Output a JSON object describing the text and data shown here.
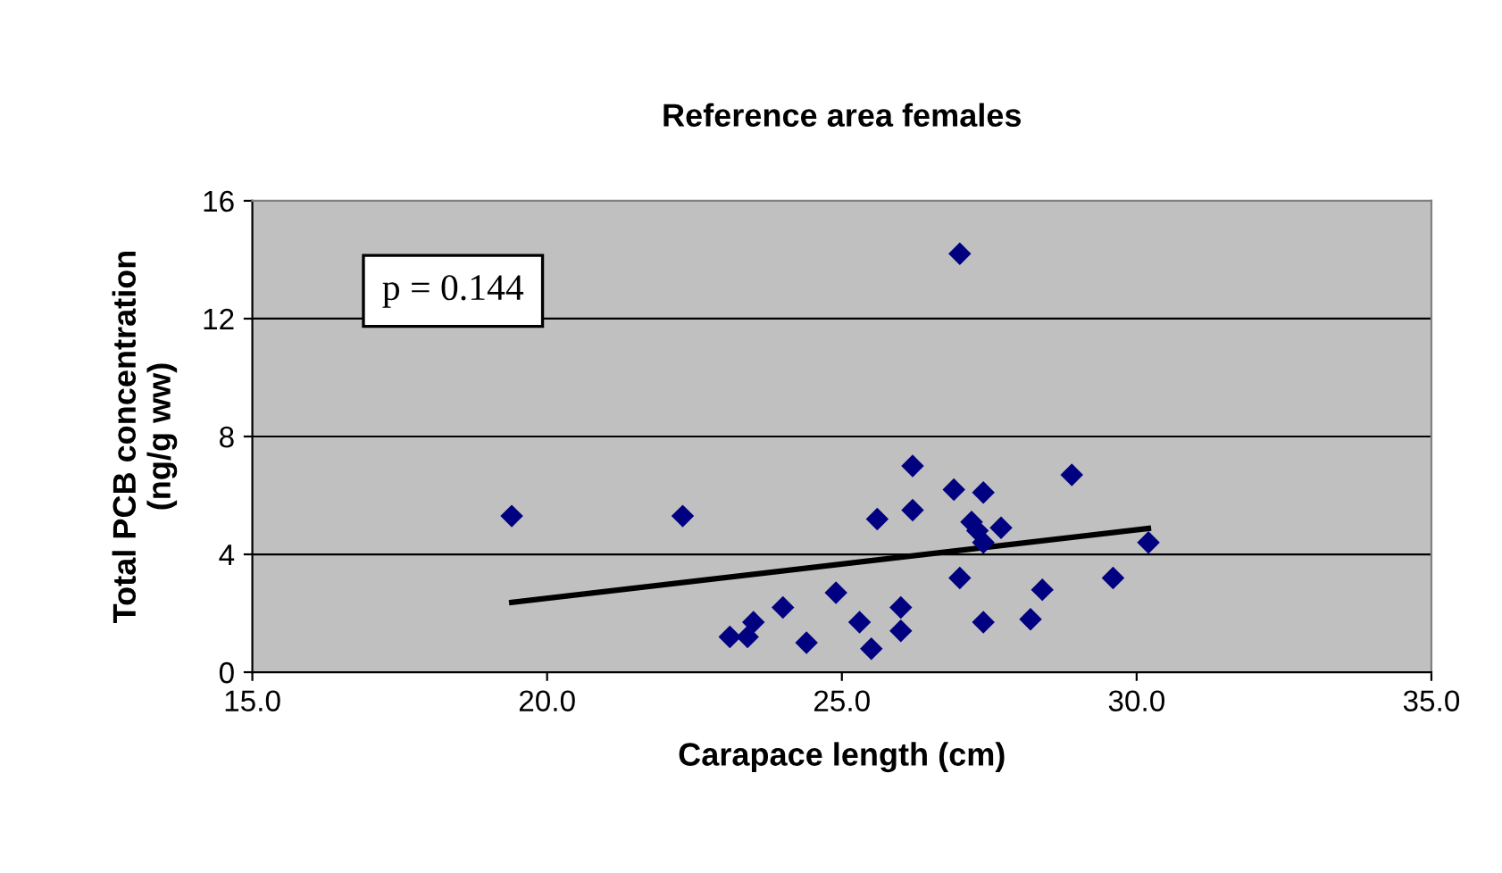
{
  "chart_data": {
    "type": "scatter",
    "title": "Reference area females",
    "xlabel": "Carapace length (cm)",
    "ylabel": "Total PCB concentration\n(ng/g ww)",
    "annotations": [
      "p = 0.144"
    ],
    "xlim": [
      15,
      35
    ],
    "xticks": [
      {
        "value": 15,
        "label": "15.0"
      },
      {
        "value": 20,
        "label": "20.0"
      },
      {
        "value": 25,
        "label": "25.0"
      },
      {
        "value": 30,
        "label": "30.0"
      },
      {
        "value": 35,
        "label": "35.0"
      }
    ],
    "ylim": [
      0,
      16
    ],
    "yticks": [
      0,
      4,
      8,
      12,
      16
    ],
    "grid": "y",
    "legend": false,
    "marker": "diamond",
    "series": [
      {
        "color": "#000080",
        "x": [
          19.4,
          22.3,
          23.1,
          23.4,
          23.5,
          24.0,
          24.4,
          24.9,
          25.3,
          25.5,
          25.6,
          26.0,
          26.0,
          26.2,
          26.2,
          26.9,
          27.0,
          27.0,
          27.2,
          27.3,
          27.4,
          27.4,
          27.4,
          27.7,
          28.2,
          28.4,
          28.9,
          29.6,
          30.2
        ],
        "values": [
          5.3,
          5.3,
          1.2,
          1.2,
          1.7,
          2.2,
          1.0,
          2.7,
          1.7,
          0.8,
          5.2,
          2.2,
          1.4,
          7.0,
          5.5,
          6.2,
          14.2,
          3.2,
          5.1,
          4.8,
          6.1,
          4.4,
          1.7,
          4.9,
          1.8,
          2.8,
          6.7,
          3.2,
          4.4
        ]
      },
      {
        "type": "line",
        "color": "#000000",
        "marker": "none",
        "line_style": "solid",
        "x": [
          19.4,
          30.2
        ],
        "values": [
          2.37,
          4.88
        ]
      }
    ]
  }
}
